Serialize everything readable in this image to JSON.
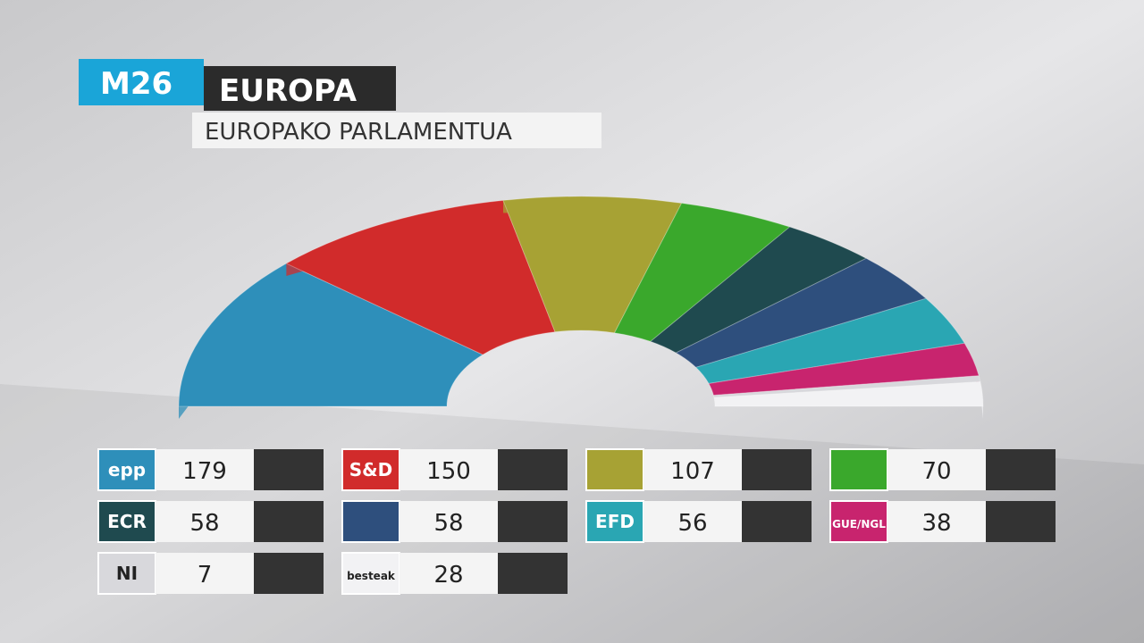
{
  "chart_data": {
    "type": "parliament",
    "badge": "M26",
    "title": "EUROPA",
    "subtitle": "EUROPAKO PARLAMENTUA",
    "categories": [
      "epp",
      "S&D",
      null,
      null,
      "ECR",
      null,
      "EFD",
      "GUE/NGL",
      "NI",
      "besteak"
    ],
    "values": [
      179,
      150,
      107,
      70,
      58,
      58,
      56,
      38,
      7,
      28
    ],
    "colors": [
      "#2e8fba",
      "#d12b2b",
      "#a7a234",
      "#3aa82c",
      "#1f4a4f",
      "#2e4f7d",
      "#2aa6b3",
      "#c8246e",
      "#d8d8dc",
      "#f2f2f4"
    ]
  }
}
